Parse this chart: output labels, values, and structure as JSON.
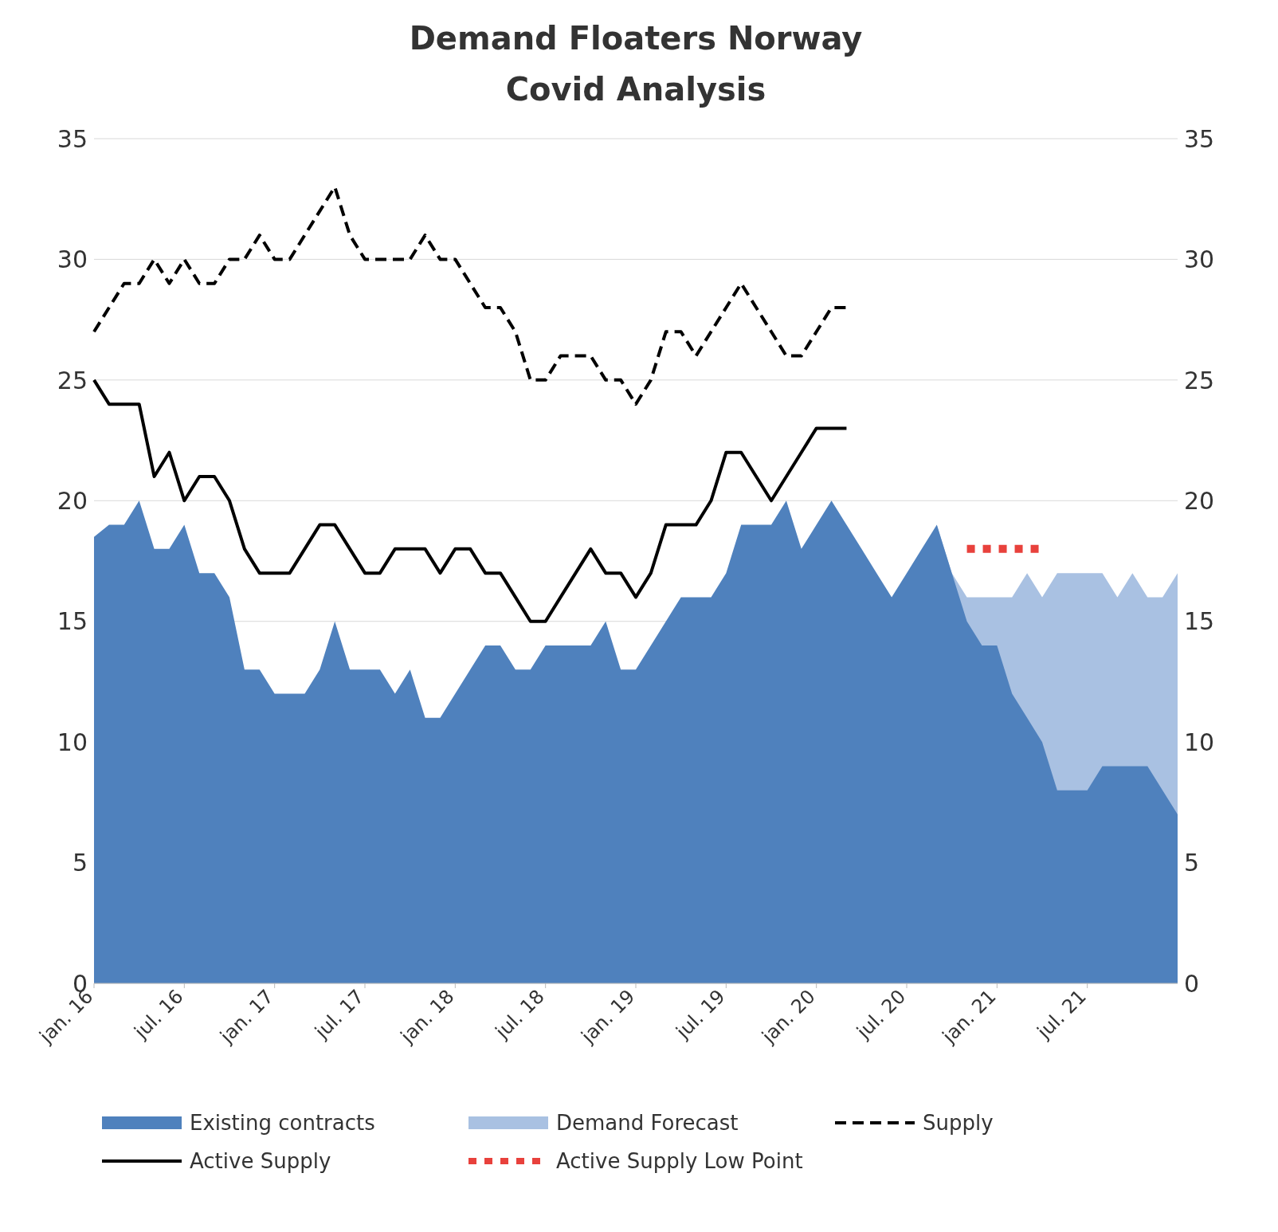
{
  "chart_data": {
    "type": "area",
    "title": "Demand Floaters Norway",
    "subtitle": "Covid Analysis",
    "categories": [
      "jan. 16",
      null,
      null,
      null,
      null,
      null,
      "jul. 16",
      null,
      null,
      null,
      null,
      null,
      "jan. 17",
      null,
      null,
      null,
      null,
      null,
      "jul. 17",
      null,
      null,
      null,
      null,
      null,
      "jan. 18",
      null,
      null,
      null,
      null,
      null,
      "jul. 18",
      null,
      null,
      null,
      null,
      null,
      "jan. 19",
      null,
      null,
      null,
      null,
      null,
      "jul. 19",
      null,
      null,
      null,
      null,
      null,
      "jan. 20",
      null,
      null,
      null,
      null,
      null,
      "jul. 20",
      null,
      null,
      null,
      null,
      null,
      "jan. 21",
      null,
      null,
      null,
      null,
      null,
      "jul. 21",
      null,
      null,
      null,
      null,
      null,
      null
    ],
    "series": [
      {
        "name": "Existing contracts",
        "color": "#4f81bd",
        "values": [
          18.5,
          19,
          19,
          20,
          18,
          18,
          19,
          17,
          17,
          16,
          13,
          13,
          12,
          12,
          12,
          13,
          15,
          13,
          13,
          13,
          12,
          13,
          11,
          11,
          12,
          13,
          14,
          14,
          13,
          13,
          14,
          14,
          14,
          14,
          15,
          13,
          13,
          14,
          15,
          16,
          16,
          16,
          17,
          19,
          19,
          19,
          20,
          18,
          19,
          20,
          19,
          18,
          17,
          16,
          17,
          18,
          19,
          17,
          15,
          14,
          14,
          12,
          11,
          10,
          8,
          8,
          8,
          9,
          9,
          9,
          9,
          8,
          7
        ]
      },
      {
        "name": "Demand Forecast",
        "color": "#a9c1e2",
        "values": [
          null,
          null,
          null,
          null,
          null,
          null,
          null,
          null,
          null,
          null,
          null,
          null,
          null,
          null,
          null,
          null,
          null,
          null,
          null,
          null,
          null,
          null,
          null,
          null,
          null,
          null,
          null,
          null,
          null,
          null,
          null,
          null,
          null,
          null,
          null,
          null,
          null,
          null,
          null,
          null,
          null,
          null,
          null,
          null,
          null,
          null,
          null,
          null,
          null,
          null,
          null,
          null,
          null,
          null,
          null,
          null,
          19,
          17,
          16,
          16,
          16,
          16,
          17,
          16,
          17,
          17,
          17,
          17,
          16,
          17,
          16,
          16,
          17
        ]
      },
      {
        "name": "Supply",
        "type": "line",
        "line_style": "dashed",
        "color": "#000000",
        "values": [
          27,
          28,
          29,
          29,
          30,
          29,
          30,
          29,
          29,
          30,
          30,
          31,
          30,
          30,
          31,
          32,
          33,
          31,
          30,
          30,
          30,
          30,
          31,
          30,
          30,
          29,
          28,
          28,
          27,
          25,
          25,
          26,
          26,
          26,
          25,
          25,
          24,
          25,
          27,
          27,
          26,
          27,
          28,
          29,
          28,
          27,
          26,
          26,
          27,
          28,
          28,
          null,
          null,
          null,
          null,
          null,
          null,
          null,
          null,
          null,
          null,
          null,
          null,
          null,
          null,
          null,
          null,
          null,
          null,
          null,
          null,
          null,
          null
        ]
      },
      {
        "name": "Active Supply",
        "type": "line",
        "line_style": "solid",
        "color": "#000000",
        "values": [
          25,
          24,
          24,
          24,
          21,
          22,
          20,
          21,
          21,
          20,
          18,
          17,
          17,
          17,
          18,
          19,
          19,
          18,
          17,
          17,
          18,
          18,
          18,
          17,
          18,
          18,
          17,
          17,
          16,
          15,
          15,
          16,
          17,
          18,
          17,
          17,
          16,
          17,
          19,
          19,
          19,
          20,
          22,
          22,
          21,
          20,
          21,
          22,
          23,
          23,
          23,
          null,
          null,
          null,
          null,
          null,
          null,
          null,
          null,
          null,
          null,
          null,
          null,
          null,
          null,
          null,
          null,
          null,
          null,
          null,
          null,
          null,
          null
        ]
      },
      {
        "name": "Active Supply Low Point",
        "type": "line",
        "line_style": "dotted",
        "color": "#e8413c",
        "values": [
          null,
          null,
          null,
          null,
          null,
          null,
          null,
          null,
          null,
          null,
          null,
          null,
          null,
          null,
          null,
          null,
          null,
          null,
          null,
          null,
          null,
          null,
          null,
          null,
          null,
          null,
          null,
          null,
          null,
          null,
          null,
          null,
          null,
          null,
          null,
          null,
          null,
          null,
          null,
          null,
          null,
          null,
          null,
          null,
          null,
          null,
          null,
          null,
          null,
          null,
          null,
          null,
          null,
          null,
          null,
          null,
          null,
          null,
          18,
          18,
          18,
          18,
          18,
          18,
          null,
          null,
          null,
          null,
          null,
          null,
          null,
          null,
          null
        ]
      }
    ],
    "ylim": [
      0,
      35
    ],
    "yticks": [
      0,
      5,
      10,
      15,
      20,
      25,
      30,
      35
    ],
    "y2lim": [
      0,
      35
    ],
    "y2ticks": [
      0,
      5,
      10,
      15,
      20,
      25,
      30,
      35
    ],
    "grid": "y",
    "legend": "bottom"
  }
}
